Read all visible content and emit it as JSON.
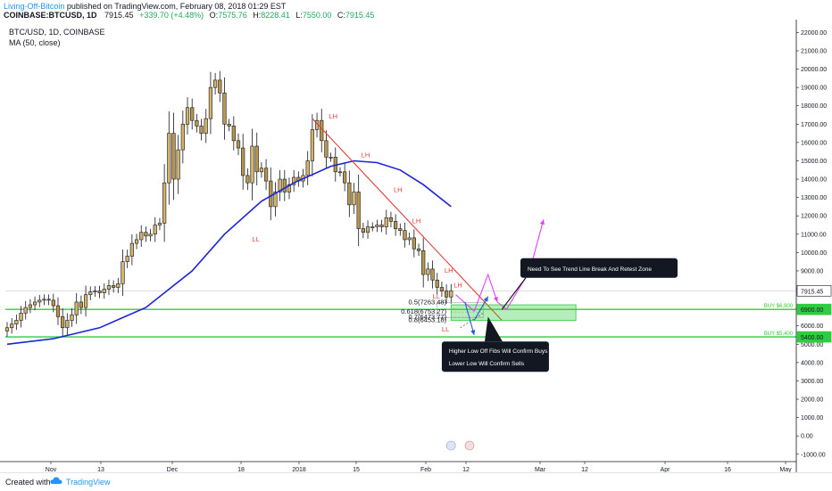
{
  "header": {
    "author": "Living-Off-Bitcoin",
    "published": "published on TradingView.com, February 08, 2018 01:29 EST",
    "symbol_line": "COINBASE:BTCUSD, 1D",
    "price": "7915.45",
    "change": "+339.70 (+4.48%)",
    "o_label": "O:",
    "o_value": "7575.76",
    "h_label": "H:",
    "h_value": "8228.41",
    "l_label": "L:",
    "l_value": "7550.00",
    "c_label": "C:",
    "c_value": "7915.45"
  },
  "legend": {
    "title": "BTC/USD, 1D, COINBASE",
    "indicator": "MA (50, close)"
  },
  "footer": {
    "created_with": "Created with",
    "brand": "TradingView"
  },
  "colors": {
    "candle": "#d4b46a",
    "candle_border": "#131722",
    "ma": "#1a24d6",
    "trendline": "#e53935",
    "zone": "#2ecc40",
    "arrow_magenta": "#e040fb",
    "arrow_blue": "#1e5bd6",
    "brand": "#2196f3"
  },
  "chart_data": {
    "type": "candlestick",
    "title": "BTC/USD, 1D, COINBASE",
    "x_ticks": [
      "Nov",
      "13",
      "Dec",
      "18",
      "2018",
      "15",
      "Feb",
      "12",
      "Mar",
      "12",
      "Apr",
      "16",
      "May"
    ],
    "y_ticks": [
      22000,
      21000,
      20000,
      19000,
      18000,
      17000,
      16000,
      15000,
      14000,
      13000,
      12000,
      11000,
      10000,
      9000,
      8000,
      7000,
      6000,
      5000,
      4000,
      3000,
      2000,
      1000,
      0,
      -1000
    ],
    "y_tick_labels": [
      "22000.00",
      "21000.00",
      "20000.00",
      "19000.00",
      "18000.00",
      "17000.00",
      "16000.00",
      "15000.00",
      "14000.00",
      "13000.00",
      "12000.00",
      "11000.00",
      "10000.00",
      "9000.00",
      "8000.00",
      "7000.00",
      "6000.00",
      "5000.00",
      "4000.00",
      "3000.00",
      "2000.00",
      "1000.00",
      "0.00",
      "-1000.00"
    ],
    "ylim": [
      -1400,
      22700
    ],
    "grid": false,
    "close_series": [
      5900,
      6100,
      6300,
      6700,
      7000,
      7150,
      7300,
      7400,
      7450,
      7400,
      7100,
      6500,
      5900,
      6300,
      6600,
      7300,
      7000,
      7700,
      7850,
      7900,
      7800,
      8000,
      8200,
      8100,
      8300,
      9500,
      9800,
      10500,
      10700,
      11100,
      10900,
      11000,
      11500,
      11600,
      13800,
      16500,
      14000,
      15600,
      17000,
      17900,
      17200,
      16900,
      16500,
      17300,
      19000,
      19400,
      18700,
      17000,
      16900,
      16100,
      15700,
      14200,
      13800,
      15800,
      14400,
      14600,
      13900,
      12500,
      13300,
      14000,
      13300,
      13700,
      14100,
      13900,
      14200,
      15000,
      16700,
      17200,
      16100,
      15200,
      15200,
      14400,
      14400,
      13800,
      12600,
      13300,
      11300,
      11100,
      11400,
      11400,
      11500,
      11400,
      11900,
      11700,
      11300,
      11200,
      10700,
      10800,
      10200,
      10100,
      8800,
      9100,
      8500,
      8100,
      7900,
      7576,
      7915
    ],
    "ma50_points": [
      {
        "x": 0,
        "y": 5000
      },
      {
        "x": 10,
        "y": 5300
      },
      {
        "x": 20,
        "y": 5900
      },
      {
        "x": 30,
        "y": 7000
      },
      {
        "x": 40,
        "y": 9000
      },
      {
        "x": 47,
        "y": 11000
      },
      {
        "x": 55,
        "y": 12800
      },
      {
        "x": 62,
        "y": 13800
      },
      {
        "x": 70,
        "y": 14700
      },
      {
        "x": 75,
        "y": 15000
      },
      {
        "x": 80,
        "y": 14900
      },
      {
        "x": 85,
        "y": 14500
      },
      {
        "x": 90,
        "y": 13700
      },
      {
        "x": 96,
        "y": 12500
      }
    ],
    "lh_labels": [
      "LH",
      "LH",
      "LH",
      "LH",
      "LH",
      "LH"
    ],
    "ll_labels": [
      "LL",
      "LL",
      "LL"
    ],
    "fibs": [
      "0.5(7263.48)",
      "0.618(6753.27)",
      "0.7(6473.77)",
      "0.8(6453.18)"
    ],
    "buy_zones": [
      {
        "label": "BUY $6,900",
        "value": 6900
      },
      {
        "label": "BUY $5,400",
        "value": 5400
      }
    ],
    "axis_tags": [
      {
        "label": "7915.45",
        "value": 7915
      },
      {
        "label": "6900.00",
        "value": 6900
      },
      {
        "label": "5400.00",
        "value": 5400
      }
    ],
    "annotations": [
      "Need To See Trend Line Break And Retest Zone",
      "Higher Low Off Fibs Will Confirm Buys",
      "Lower Low Will Confirm Sells"
    ]
  }
}
